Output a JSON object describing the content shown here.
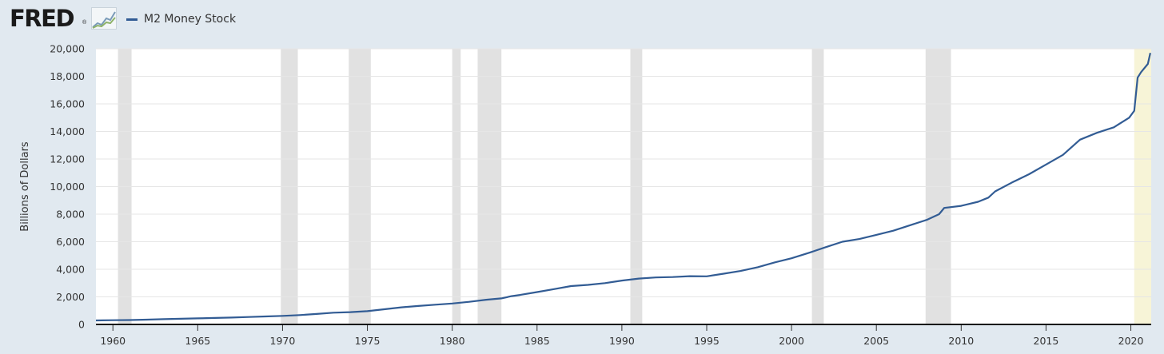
{
  "header": {
    "logo_text": "FRED",
    "logo_mark": "®",
    "logo_icon": "line-chart-icon"
  },
  "chart_data": {
    "type": "line",
    "title": "",
    "xlabel": "",
    "ylabel": "Billions of Dollars",
    "ylim": [
      0,
      20000
    ],
    "xlim": [
      1959.0,
      2021.2
    ],
    "yticks": [
      0,
      2000,
      4000,
      6000,
      8000,
      10000,
      12000,
      14000,
      16000,
      18000,
      20000
    ],
    "ytick_labels": [
      "0",
      "2,000",
      "4,000",
      "6,000",
      "8,000",
      "10,000",
      "12,000",
      "14,000",
      "16,000",
      "18,000",
      "20,000"
    ],
    "xticks": [
      1960,
      1965,
      1970,
      1975,
      1980,
      1985,
      1990,
      1995,
      2000,
      2005,
      2010,
      2015,
      2020
    ],
    "xtick_labels": [
      "1960",
      "1965",
      "1970",
      "1975",
      "1980",
      "1985",
      "1990",
      "1995",
      "2000",
      "2005",
      "2010",
      "2015",
      "2020"
    ],
    "grid": true,
    "legend_position": "top-left",
    "line_color": "#325c94",
    "recession_color": "#e1e1e1",
    "recessions": [
      [
        1960.3,
        1961.1
      ],
      [
        1969.9,
        1970.9
      ],
      [
        1973.9,
        1975.2
      ],
      [
        1980.0,
        1980.5
      ],
      [
        1981.5,
        1982.9
      ],
      [
        1990.5,
        1991.2
      ],
      [
        2001.2,
        2001.9
      ],
      [
        2007.9,
        2009.4
      ]
    ],
    "preliminary_band": [
      2020.2,
      2021.2
    ],
    "preliminary_color": "#f7f4d7",
    "series": [
      {
        "name": "M2 Money Stock",
        "x": [
          1959.0,
          1960,
          1961,
          1962,
          1963,
          1964,
          1965,
          1966,
          1967,
          1968,
          1969,
          1970,
          1971,
          1972,
          1973,
          1974,
          1975,
          1976,
          1977,
          1978,
          1979,
          1980,
          1981,
          1982,
          1982.9,
          1983.5,
          1984,
          1985,
          1986,
          1987,
          1988,
          1989,
          1990,
          1991,
          1992,
          1993,
          1994,
          1995,
          1996,
          1997,
          1998,
          1999,
          2000,
          2001,
          2002,
          2003,
          2004,
          2005,
          2006,
          2007,
          2008,
          2008.7,
          2009,
          2010,
          2011,
          2011.6,
          2012,
          2013,
          2014,
          2015,
          2016,
          2017,
          2018,
          2019,
          2019.9,
          2020.2,
          2020.4,
          2020.6,
          2021.0,
          2021.15
        ],
        "values": [
          290,
          310,
          320,
          350,
          380,
          410,
          440,
          470,
          500,
          540,
          580,
          620,
          680,
          760,
          850,
          890,
          960,
          1100,
          1240,
          1340,
          1430,
          1520,
          1640,
          1790,
          1890,
          2050,
          2140,
          2350,
          2560,
          2780,
          2870,
          3000,
          3180,
          3330,
          3410,
          3440,
          3500,
          3490,
          3680,
          3880,
          4150,
          4500,
          4800,
          5180,
          5600,
          6000,
          6200,
          6500,
          6800,
          7200,
          7600,
          8000,
          8450,
          8600,
          8900,
          9200,
          9650,
          10300,
          10900,
          11600,
          12300,
          13400,
          13900,
          14300,
          15000,
          15500,
          17900,
          18300,
          18900,
          19700
        ]
      }
    ]
  }
}
